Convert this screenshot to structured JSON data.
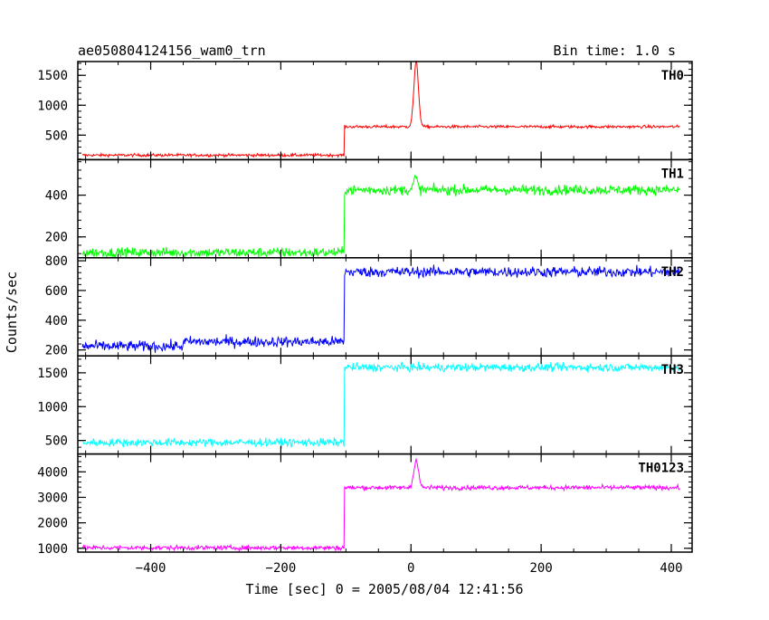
{
  "header": {
    "title": "ae050804124156_wam0_trn",
    "bin_time": "Bin time: 1.0 s"
  },
  "chart_data": {
    "type": "line",
    "xlabel": "Time [sec] 0 = 2005/08/04 12:41:56",
    "ylabel": "Counts/sec",
    "xlim": [
      -512,
      432
    ],
    "x_ticks": [
      -400,
      -200,
      0,
      200,
      400
    ],
    "x_tick_labels": [
      "−400",
      "−200",
      "0",
      "200",
      "400"
    ],
    "x_start": -505,
    "x_end": 413,
    "onset_x": -102,
    "grid": false,
    "legend": "none",
    "panels": [
      {
        "name": "TH0",
        "color": "#ff0000",
        "ylim": [
          90,
          1730
        ],
        "y_ticks": [
          500,
          1000,
          1500
        ],
        "y_tick_labels": [
          "500",
          "1000",
          "1500"
        ],
        "pre_level": 165,
        "post_level": 640,
        "noise": 12,
        "peak": {
          "x": 8,
          "height": 1080,
          "width": 5
        }
      },
      {
        "name": "TH1",
        "color": "#00ff00",
        "ylim": [
          100,
          570
        ],
        "y_ticks": [
          200,
          400
        ],
        "y_tick_labels": [
          "200",
          "400"
        ],
        "pre_level": 125,
        "post_level": 425,
        "noise": 12,
        "peak": {
          "x": 7,
          "height": 60,
          "width": 4
        }
      },
      {
        "name": "TH2",
        "color": "#0000ff",
        "ylim": [
          160,
          820
        ],
        "y_ticks": [
          200,
          400,
          600,
          800
        ],
        "y_tick_labels": [
          "200",
          "400",
          "600",
          "800"
        ],
        "pre_level": 225,
        "pre_level_late": 255,
        "post_level": 725,
        "noise": 18,
        "peak": {
          "x": 0,
          "height": 0,
          "width": 1
        }
      },
      {
        "name": "TH3",
        "color": "#00ffff",
        "ylim": [
          300,
          1750
        ],
        "y_ticks": [
          500,
          1000,
          1500
        ],
        "y_tick_labels": [
          "500",
          "1000",
          "1500"
        ],
        "pre_level": 470,
        "post_level": 1580,
        "noise": 30,
        "peak": {
          "x": 0,
          "height": 0,
          "width": 1
        }
      },
      {
        "name": "TH0123",
        "color": "#ff00ff",
        "ylim": [
          850,
          4700
        ],
        "y_ticks": [
          1000,
          2000,
          3000,
          4000
        ],
        "y_tick_labels": [
          "1000",
          "2000",
          "3000",
          "4000"
        ],
        "pre_level": 1020,
        "post_level": 3380,
        "noise": 45,
        "peak": {
          "x": 8,
          "height": 1100,
          "width": 5
        }
      }
    ]
  }
}
